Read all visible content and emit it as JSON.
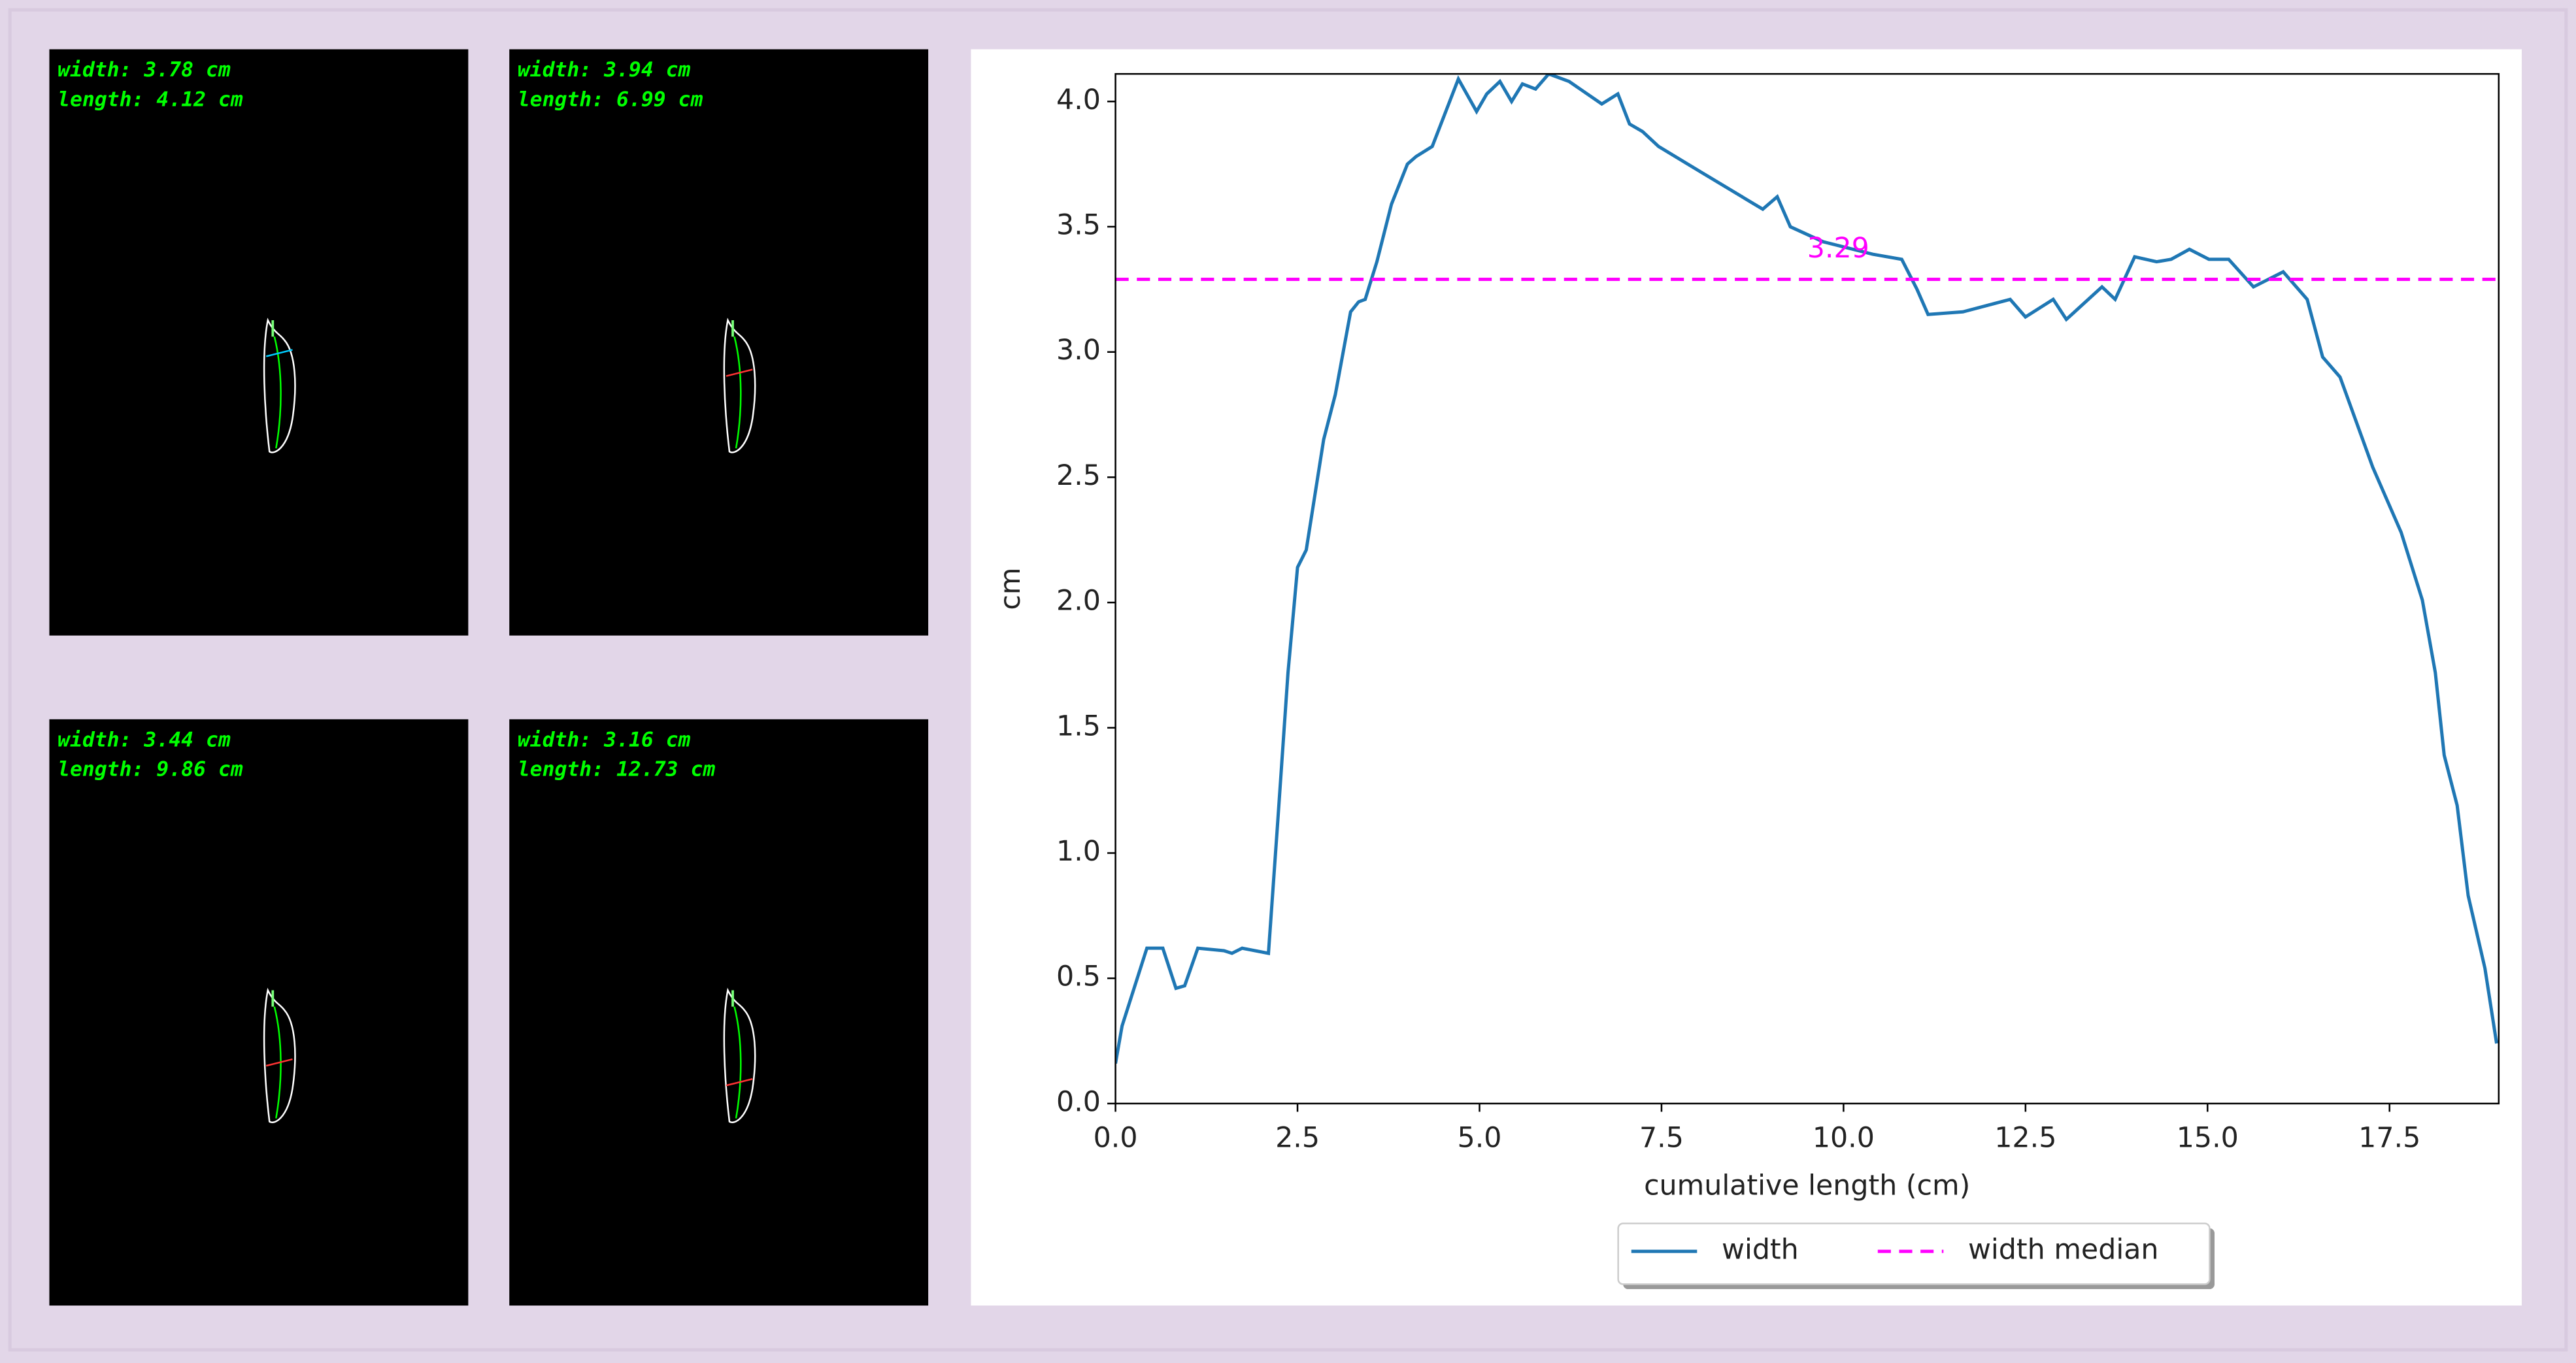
{
  "panels": [
    {
      "width": "width: 3.78 cm",
      "length": "length: 4.12 cm"
    },
    {
      "width": "width: 3.94 cm",
      "length": "length: 6.99 cm"
    },
    {
      "width": "width: 3.44 cm",
      "length": "length: 9.86 cm"
    },
    {
      "width": "width: 3.16 cm",
      "length": "length: 12.73 cm"
    }
  ],
  "chart_data": {
    "type": "line",
    "xlabel": "cumulative length (cm)",
    "ylabel": "cm",
    "x": [
      0,
      0.09,
      0.43,
      0.65,
      0.83,
      0.95,
      1.13,
      1.49,
      1.6,
      1.74,
      2.1,
      2.23,
      2.37,
      2.5,
      2.62,
      2.86,
      3.02,
      3.23,
      3.34,
      3.43,
      3.59,
      3.79,
      4.01,
      4.13,
      4.35,
      4.71,
      4.96,
      5.1,
      5.28,
      5.44,
      5.59,
      5.77,
      5.95,
      6.23,
      6.68,
      6.9,
      7.06,
      7.24,
      7.46,
      8.03,
      8.89,
      9.09,
      9.27,
      9.72,
      10.4,
      10.8,
      11.01,
      11.16,
      11.64,
      12.29,
      12.5,
      12.88,
      13.06,
      13.55,
      13.73,
      14.0,
      14.3,
      14.5,
      14.75,
      15.02,
      15.29,
      15.63,
      16.04,
      16.37,
      16.58,
      16.82,
      17.27,
      17.66,
      17.95,
      18.13,
      18.25,
      18.43,
      18.58,
      18.81,
      18.97
    ],
    "series": [
      {
        "name": "width",
        "color": "#1f77b4",
        "values": [
          0.16,
          0.31,
          0.62,
          0.62,
          0.46,
          0.47,
          0.62,
          0.61,
          0.6,
          0.62,
          0.6,
          1.13,
          1.72,
          2.14,
          2.21,
          2.65,
          2.83,
          3.16,
          3.2,
          3.21,
          3.36,
          3.59,
          3.75,
          3.78,
          3.82,
          4.09,
          3.96,
          4.03,
          4.08,
          4.0,
          4.07,
          4.05,
          4.11,
          4.08,
          3.99,
          4.03,
          3.91,
          3.88,
          3.82,
          3.72,
          3.57,
          3.62,
          3.5,
          3.44,
          3.39,
          3.37,
          3.25,
          3.15,
          3.16,
          3.21,
          3.14,
          3.21,
          3.13,
          3.26,
          3.21,
          3.38,
          3.36,
          3.37,
          3.41,
          3.37,
          3.37,
          3.26,
          3.32,
          3.21,
          2.98,
          2.9,
          2.54,
          2.28,
          2.01,
          1.72,
          1.39,
          1.19,
          0.83,
          0.54,
          0.24
        ]
      }
    ],
    "median_line": {
      "name": "width median",
      "color": "#ff00ff",
      "value": 3.29
    },
    "xlim": [
      0,
      19
    ],
    "ylim": [
      0,
      4.11
    ],
    "xticks": [
      {
        "value": 0,
        "label": "0.0"
      },
      {
        "value": 2.5,
        "label": "2.5"
      },
      {
        "value": 5,
        "label": "5.0"
      },
      {
        "value": 7.5,
        "label": "7.5"
      },
      {
        "value": 10,
        "label": "10.0"
      },
      {
        "value": 12.5,
        "label": "12.5"
      },
      {
        "value": 15,
        "label": "15.0"
      },
      {
        "value": 17.5,
        "label": "17.5"
      }
    ],
    "yticks": [
      {
        "value": 0,
        "label": "0.0"
      },
      {
        "value": 0.5,
        "label": "0.5"
      },
      {
        "value": 1,
        "label": "1.0"
      },
      {
        "value": 1.5,
        "label": "1.5"
      },
      {
        "value": 2,
        "label": "2.0"
      },
      {
        "value": 2.5,
        "label": "2.5"
      },
      {
        "value": 3,
        "label": "3.0"
      },
      {
        "value": 3.5,
        "label": "3.5"
      },
      {
        "value": 4,
        "label": "4.0"
      }
    ],
    "legend": "lower center"
  }
}
